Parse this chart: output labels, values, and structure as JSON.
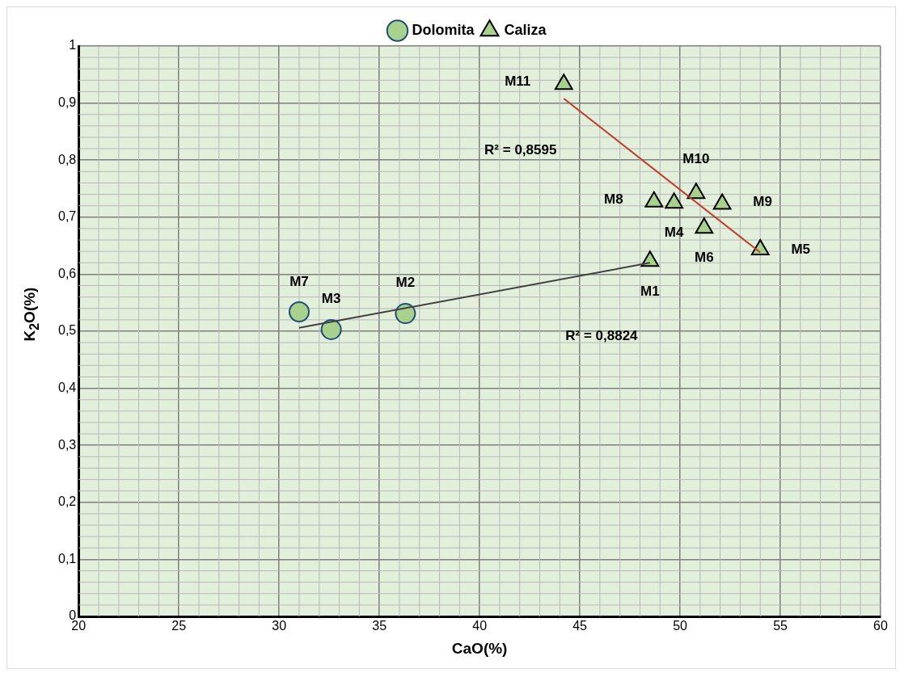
{
  "chart_data": {
    "type": "scatter",
    "xlabel": "CaO(%)",
    "ylabel": "K$_{2}$O(%)",
    "xlim": [
      20,
      60
    ],
    "xticks": [
      20,
      25,
      30,
      35,
      40,
      45,
      50,
      55,
      60
    ],
    "ylim": [
      0,
      1
    ],
    "yticks": [
      0,
      {
        "value": 0.1,
        "label": "0,1"
      },
      {
        "value": 0.2,
        "label": "0,2"
      },
      {
        "value": 0.3,
        "label": "0,3"
      },
      {
        "value": 0.4,
        "label": "0,4"
      },
      {
        "value": 0.5,
        "label": "0,5"
      },
      {
        "value": 0.6,
        "label": "0,6"
      },
      {
        "value": 0.7,
        "label": "0,7"
      },
      {
        "value": 0.8,
        "label": "0,8"
      },
      {
        "value": 0.9,
        "label": "0,9"
      },
      1
    ],
    "grid": true,
    "legend": "top",
    "series": [
      {
        "name": "Dolomita",
        "color": "#a9d18e",
        "marker": "circle",
        "x": [
          36.3,
          32.6,
          31.0
        ],
        "values": [
          0.531,
          0.503,
          0.534
        ]
      },
      {
        "name": "Caliza",
        "color": "#a9d18e",
        "marker": "triangle",
        "x": [
          48.5,
          49.7,
          54.0,
          51.2,
          48.7,
          52.1,
          50.8,
          44.2
        ],
        "values": [
          0.623,
          0.725,
          0.643,
          0.681,
          0.727,
          0.723,
          0.742,
          0.933
        ]
      },
      {
        "type": "line",
        "color": "#404040",
        "x": [
          31.0,
          48.5
        ],
        "values": [
          0.506,
          0.62
        ]
      },
      {
        "type": "line",
        "color": "#c0392b",
        "x": [
          44.2,
          54.0
        ],
        "values": [
          0.908,
          0.638
        ]
      }
    ],
    "annotations": [
      {
        "text": "M1",
        "x": 48.5,
        "y": 0.623
      },
      {
        "text": "M2",
        "x": 36.3,
        "y": 0.531
      },
      {
        "text": "M3",
        "x": 32.6,
        "y": 0.503
      },
      {
        "text": "M4",
        "x": 49.7,
        "y": 0.725
      },
      {
        "text": "M5",
        "x": 54.0,
        "y": 0.643
      },
      {
        "text": "M6",
        "x": 51.2,
        "y": 0.681
      },
      {
        "text": "M7",
        "x": 31.0,
        "y": 0.534
      },
      {
        "text": "M8",
        "x": 48.7,
        "y": 0.727
      },
      {
        "text": "M9",
        "x": 52.1,
        "y": 0.723
      },
      {
        "text": "M10",
        "x": 50.8,
        "y": 0.742
      },
      {
        "text": "M11",
        "x": 44.2,
        "y": 0.933
      },
      "R² = 0,8595",
      "R² = 0,8824"
    ]
  }
}
